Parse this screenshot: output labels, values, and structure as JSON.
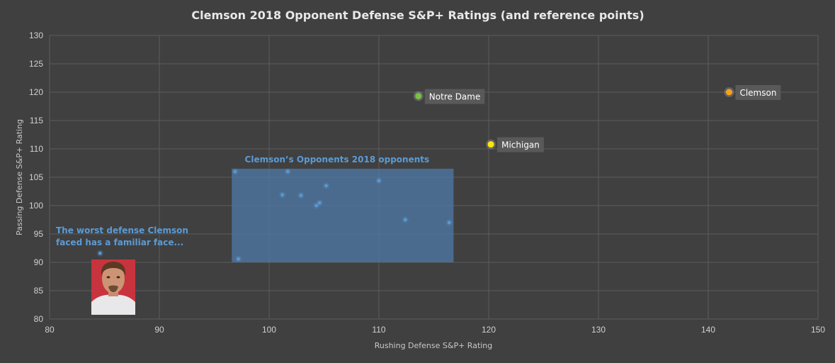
{
  "chart_data": {
    "type": "scatter",
    "title": "Clemson 2018 Opponent Defense S&P+ Ratings (and reference points)",
    "xlabel": "Rushing  Defense S&P+ Rating",
    "ylabel": "Passing  Defense S&P+ Rating",
    "xlim": [
      80,
      150
    ],
    "ylim": [
      80,
      130
    ],
    "xticks": [
      80,
      90,
      100,
      110,
      120,
      130,
      140,
      150
    ],
    "yticks": [
      80,
      85,
      90,
      95,
      100,
      105,
      110,
      115,
      120,
      125,
      130
    ],
    "grid": true,
    "legend": "none",
    "opponents": [
      {
        "x": 84.6,
        "y": 91.6
      },
      {
        "x": 96.9,
        "y": 106.0
      },
      {
        "x": 97.2,
        "y": 90.6
      },
      {
        "x": 101.2,
        "y": 101.9
      },
      {
        "x": 101.7,
        "y": 106.0
      },
      {
        "x": 102.9,
        "y": 101.8
      },
      {
        "x": 104.3,
        "y": 100.0
      },
      {
        "x": 104.6,
        "y": 100.5
      },
      {
        "x": 105.2,
        "y": 103.5
      },
      {
        "x": 110.0,
        "y": 104.4
      },
      {
        "x": 112.4,
        "y": 97.5
      },
      {
        "x": 116.4,
        "y": 97.0
      }
    ],
    "reference_points": [
      {
        "name": "Notre Dame",
        "x": 113.6,
        "y": 119.3,
        "color": "#7ac143"
      },
      {
        "name": "Michigan",
        "x": 120.2,
        "y": 110.8,
        "color": "#ffe800"
      },
      {
        "name": "Clemson",
        "x": 141.9,
        "y": 120.0,
        "color": "#f7a21b"
      }
    ],
    "shaded_region": {
      "label": "Clemson’s Opponents 2018 opponents",
      "x_range": [
        96.6,
        116.8
      ],
      "y_range": [
        90.0,
        106.5
      ]
    },
    "annotation": {
      "lines": [
        "The worst defense Clemson",
        "faced has a familiar face..."
      ]
    }
  },
  "colors": {
    "background": "#404040",
    "opponent_point": "#5b9bd5",
    "shaded_region": "#4f7aa8",
    "annotation_text": "#5b9bd5",
    "label_box": "#595959"
  }
}
